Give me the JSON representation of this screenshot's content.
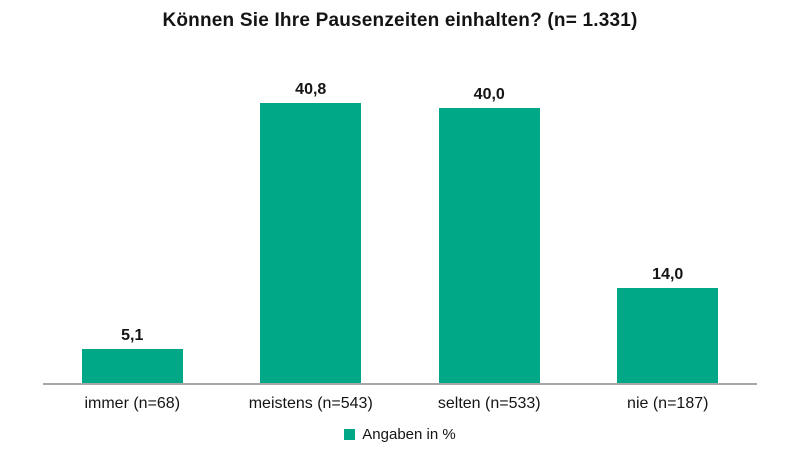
{
  "chart_data": {
    "type": "bar",
    "title": "Können Sie Ihre Pausenzeiten einhalten? (n= 1.331)",
    "categories": [
      "immer (n=68)",
      "meistens (n=543)",
      "selten (n=533)",
      "nie (n=187)"
    ],
    "values": [
      5.1,
      40.8,
      40.0,
      14.0
    ],
    "value_labels": [
      "5,1",
      "40,8",
      "40,0",
      "14,0"
    ],
    "legend": "Angaben in %",
    "xlabel": "",
    "ylabel": "",
    "ylim": [
      0,
      45
    ],
    "grid": false,
    "legend_position": "bottom",
    "bar_color": "#00a887",
    "axis_color": "#a8a8a8",
    "text_color": "#141414"
  }
}
